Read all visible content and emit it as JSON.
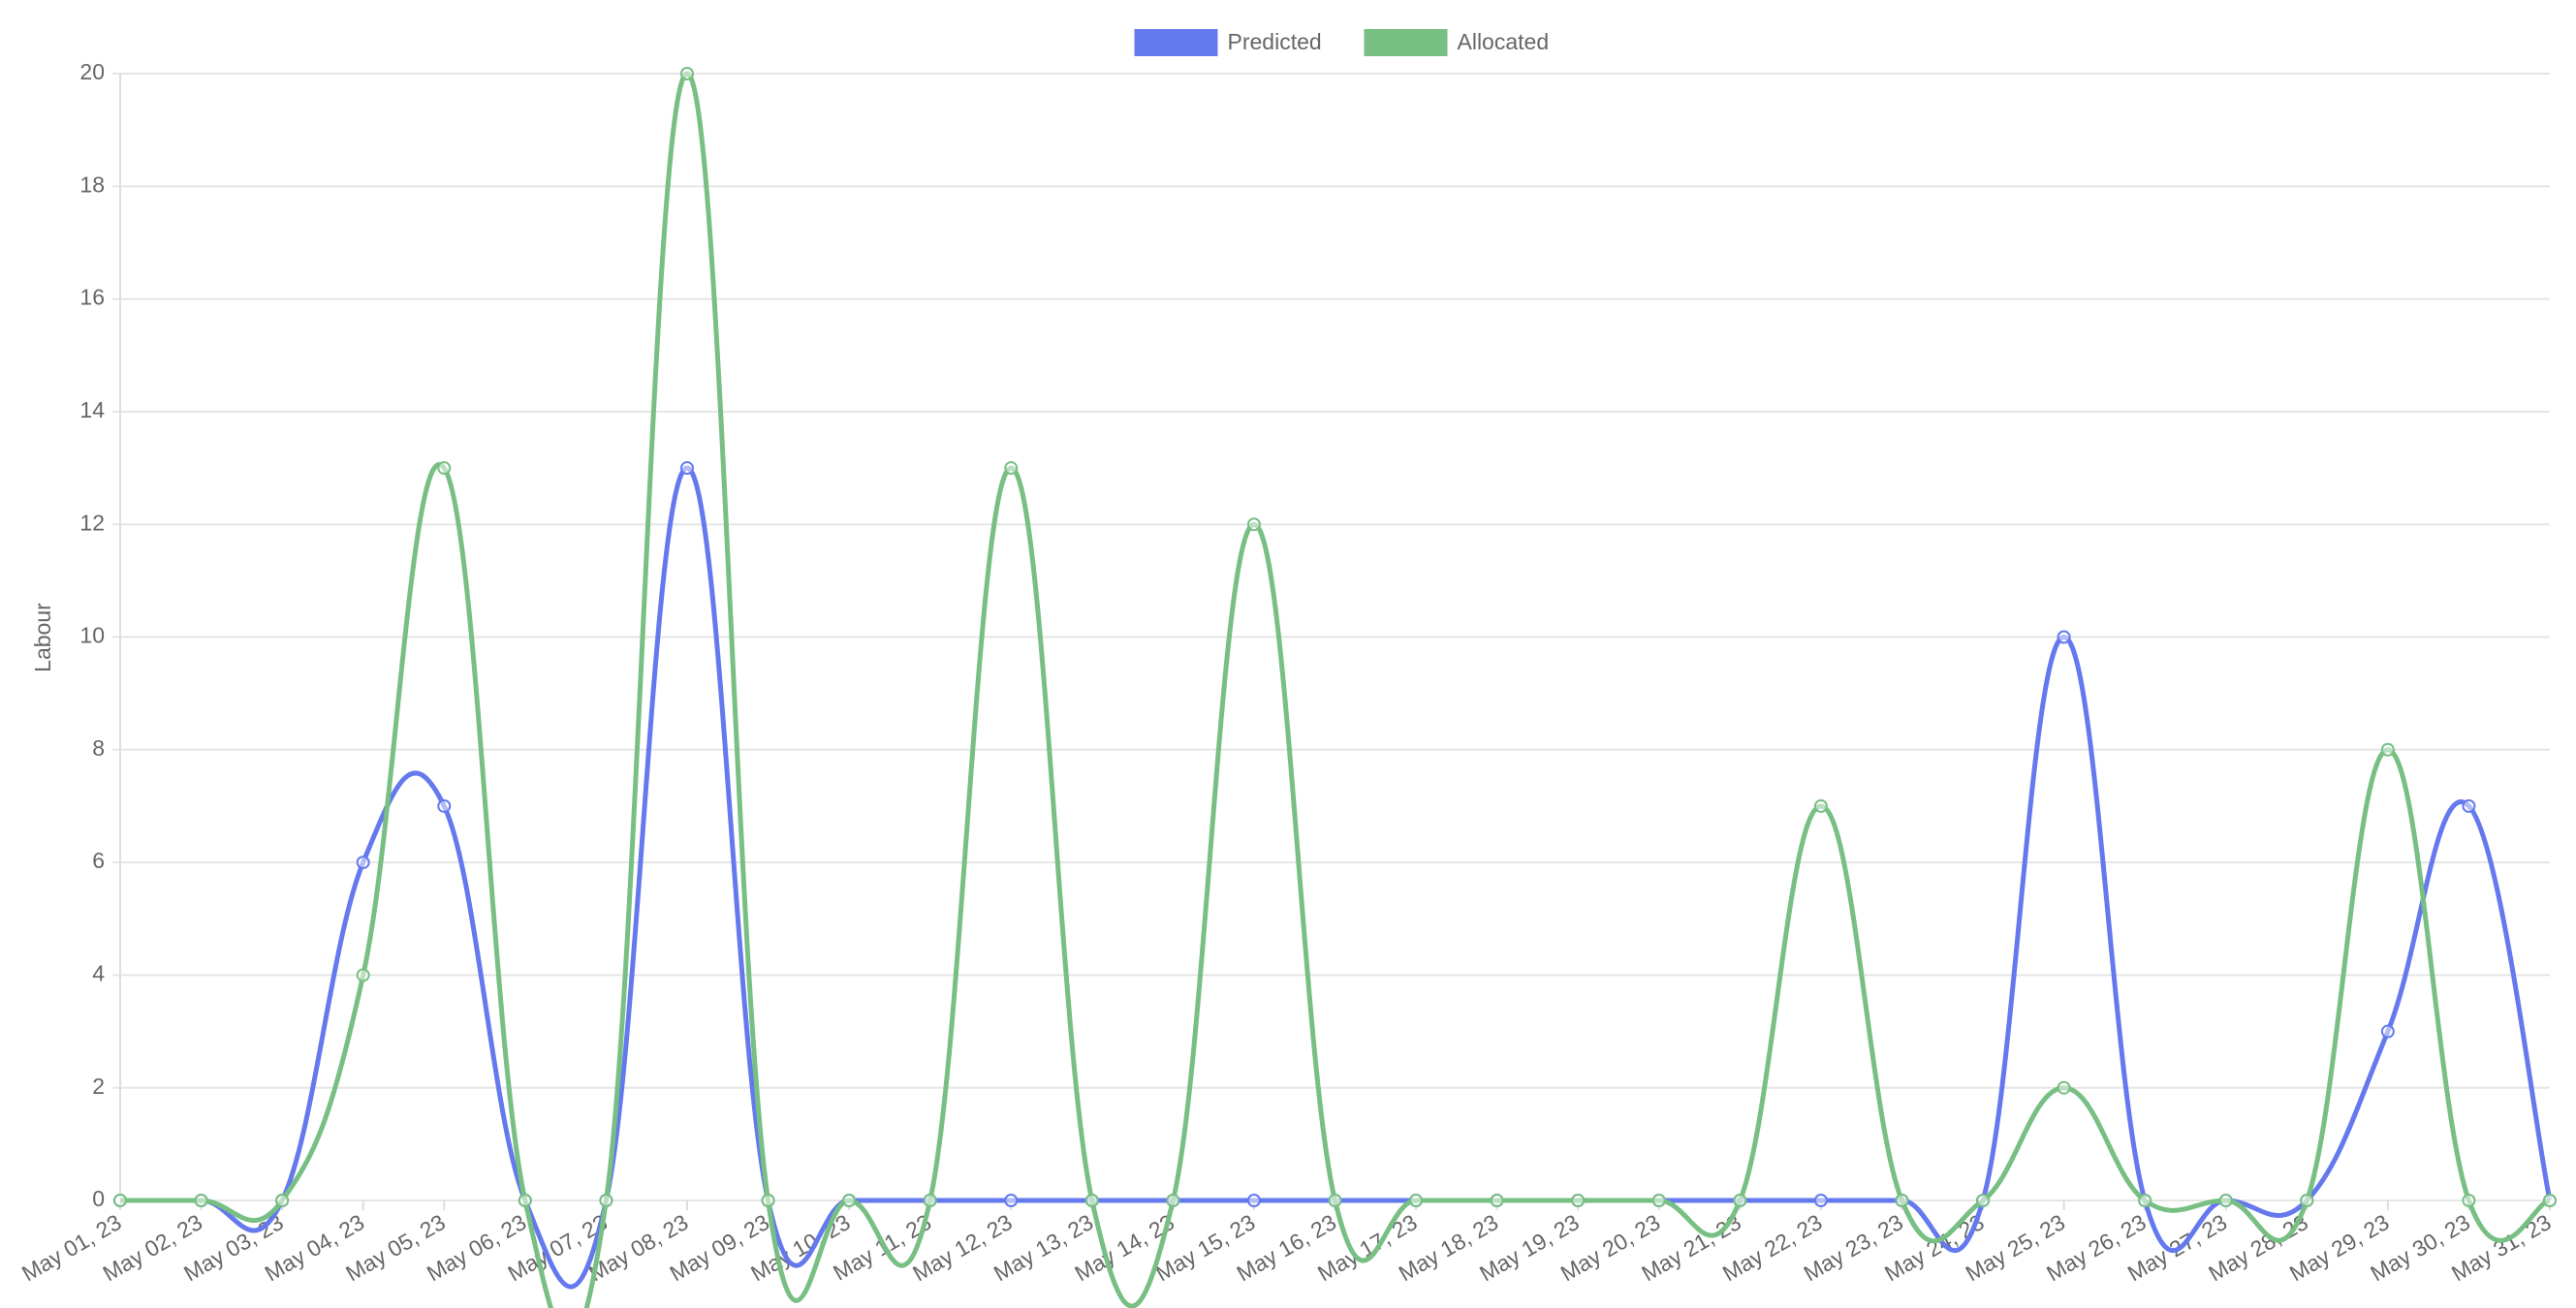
{
  "chart_data": {
    "type": "line",
    "y_label": "Labour",
    "categories": [
      "May 01, 23",
      "May 02, 23",
      "May 03, 23",
      "May 04, 23",
      "May 05, 23",
      "May 06, 23",
      "May 07, 23",
      "May 08, 23",
      "May 09, 23",
      "May 10, 23",
      "May 11, 23",
      "May 12, 23",
      "May 13, 23",
      "May 14, 23",
      "May 15, 23",
      "May 16, 23",
      "May 17, 23",
      "May 18, 23",
      "May 19, 23",
      "May 20, 23",
      "May 21, 23",
      "May 22, 23",
      "May 23, 23",
      "May 24, 23",
      "May 25, 23",
      "May 26, 23",
      "May 27, 23",
      "May 28, 23",
      "May 29, 23",
      "May 30, 23",
      "May 31, 23"
    ],
    "series": [
      {
        "name": "Predicted",
        "color": "#6479ee",
        "values": [
          0,
          0,
          0,
          6,
          7,
          0,
          0,
          13,
          0,
          0,
          0,
          0,
          0,
          0,
          0,
          0,
          0,
          0,
          0,
          0,
          0,
          0,
          0,
          0,
          10,
          0,
          0,
          0,
          3,
          7,
          0
        ]
      },
      {
        "name": "Allocated",
        "color": "#77bf83",
        "values": [
          0,
          0,
          0,
          4,
          13,
          0,
          0,
          20,
          0,
          0,
          0,
          13,
          0,
          0,
          12,
          0,
          0,
          0,
          0,
          0,
          0,
          7,
          0,
          0,
          2,
          0,
          0,
          0,
          8,
          0,
          0
        ]
      }
    ],
    "ylim": [
      0,
      20
    ],
    "yticks": [
      0,
      2,
      4,
      6,
      8,
      10,
      12,
      14,
      16,
      18,
      20
    ],
    "grid": true,
    "legend": "top"
  }
}
